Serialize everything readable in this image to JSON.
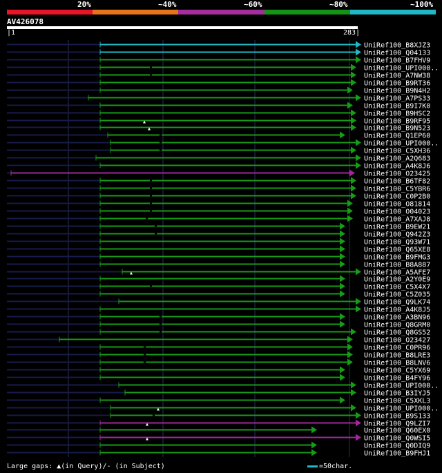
{
  "header": {
    "percentages": [
      "20%",
      "~40%",
      "~60%",
      "~80%",
      "~100%"
    ],
    "color_bar": [
      "#e8152a",
      "#e7731c",
      "#a42f9c",
      "#139416",
      "#1fb8c4"
    ]
  },
  "query": {
    "title": "AV426078",
    "start": "1",
    "end": "283"
  },
  "legend": {
    "text": "Large gaps: ▲(in Query)/- (in Subject)",
    "scale_text": "=50char."
  },
  "colors": {
    "cyan": "#1fb8c4",
    "green": "#169c16",
    "purple": "#a0289a",
    "navy": "#161b4a",
    "grid": "#2a2f5a"
  },
  "hits": [
    {
      "label": "UniRef100_B8XJZ3",
      "color": "cyan",
      "start": 145,
      "end": 515,
      "sublead": 10
    },
    {
      "label": "UniRef100_Q04133",
      "color": "cyan",
      "start": 145,
      "end": 515,
      "sublead": 10
    },
    {
      "label": "UniRef100_B7FHV9",
      "color": "green",
      "start": 145,
      "end": 515,
      "sublead": 10
    },
    {
      "label": "UniRef100_UPI000..",
      "color": "green",
      "start": 145,
      "end": 508,
      "sublead": 10,
      "gap": 218
    },
    {
      "label": "UniRef100_A7NW38",
      "color": "green",
      "start": 145,
      "end": 508,
      "sublead": 10,
      "gap": 218
    },
    {
      "label": "UniRef100_B9RT36",
      "color": "green",
      "start": 145,
      "end": 508,
      "sublead": 10
    },
    {
      "label": "UniRef100_B9N4H2",
      "color": "green",
      "start": 145,
      "end": 503,
      "sublead": 10
    },
    {
      "label": "UniRef100_A7PS33",
      "color": "green",
      "start": 128,
      "end": 515,
      "sublead": 10
    },
    {
      "label": "UniRef100_B9I7K0",
      "color": "green",
      "start": 145,
      "end": 503,
      "sublead": 10
    },
    {
      "label": "UniRef100_B9HSC2",
      "color": "green",
      "start": 145,
      "end": 508,
      "sublead": 10
    },
    {
      "label": "UniRef100_B9RF95",
      "color": "green",
      "start": 145,
      "end": 508,
      "sublead": 10,
      "tri": 209
    },
    {
      "label": "UniRef100_B9N523",
      "color": "green",
      "start": 145,
      "end": 508,
      "sublead": 10,
      "tri": 216
    },
    {
      "label": "UniRef100_Q1EP60",
      "color": "green",
      "start": 156,
      "end": 492,
      "sublead": 10,
      "gap": 232
    },
    {
      "label": "UniRef100_UPI000..",
      "color": "green",
      "start": 160,
      "end": 515,
      "sublead": 10,
      "gap": 232
    },
    {
      "label": "UniRef100_C5XH36",
      "color": "green",
      "start": 160,
      "end": 508,
      "sublead": 10,
      "gap": 232
    },
    {
      "label": "UniRef100_A2Q683",
      "color": "green",
      "start": 139,
      "end": 515,
      "sublead": 10
    },
    {
      "label": "UniRef100_A4K8J6",
      "color": "green",
      "start": 145,
      "end": 515,
      "sublead": 10
    },
    {
      "label": "UniRef100_O23425",
      "color": "purple",
      "start": 16,
      "end": 506,
      "sublead": 10
    },
    {
      "label": "UniRef100_B6TF82",
      "color": "green",
      "start": 145,
      "end": 508,
      "sublead": 10,
      "gap": 218
    },
    {
      "label": "UniRef100_C5YBR6",
      "color": "green",
      "start": 145,
      "end": 508,
      "sublead": 10,
      "gap": 218
    },
    {
      "label": "UniRef100_C0P2B0",
      "color": "green",
      "start": 145,
      "end": 508,
      "sublead": 10,
      "gap": 218
    },
    {
      "label": "UniRef100_O81814",
      "color": "green",
      "start": 145,
      "end": 503,
      "sublead": 10,
      "gap": 218
    },
    {
      "label": "UniRef100_O04023",
      "color": "green",
      "start": 145,
      "end": 503,
      "sublead": 10,
      "gap": 218
    },
    {
      "label": "UniRef100_A7XAJ8",
      "color": "green",
      "start": 145,
      "end": 503,
      "sublead": 10,
      "gap": 212
    },
    {
      "label": "UniRef100_B9EW21",
      "color": "green",
      "start": 145,
      "end": 492,
      "sublead": 10,
      "gap": 225
    },
    {
      "label": "UniRef100_Q942Z3",
      "color": "green",
      "start": 145,
      "end": 492,
      "sublead": 10,
      "gap": 225
    },
    {
      "label": "UniRef100_Q93W71",
      "color": "green",
      "start": 145,
      "end": 492,
      "sublead": 10
    },
    {
      "label": "UniRef100_Q65XE8",
      "color": "green",
      "start": 145,
      "end": 492,
      "sublead": 10
    },
    {
      "label": "UniRef100_B9FMG3",
      "color": "green",
      "start": 145,
      "end": 492,
      "sublead": 10
    },
    {
      "label": "UniRef100_B8A887",
      "color": "green",
      "start": 145,
      "end": 492,
      "sublead": 10
    },
    {
      "label": "UniRef100_A5AFE7",
      "color": "green",
      "start": 177,
      "end": 515,
      "sublead": 10,
      "tri": 190
    },
    {
      "label": "UniRef100_A2Y0E9",
      "color": "green",
      "start": 145,
      "end": 492,
      "sublead": 10
    },
    {
      "label": "UniRef100_C5X4X7",
      "color": "green",
      "start": 145,
      "end": 492,
      "sublead": 10,
      "gap": 218
    },
    {
      "label": "UniRef100_C5Z035",
      "color": "green",
      "start": 145,
      "end": 492,
      "sublead": 10
    },
    {
      "label": "UniRef100_Q9LK74",
      "color": "green",
      "start": 172,
      "end": 515,
      "sublead": 10
    },
    {
      "label": "UniRef100_A4K8J5",
      "color": "green",
      "start": 145,
      "end": 515,
      "sublead": 10
    },
    {
      "label": "UniRef100_A3BN96",
      "color": "green",
      "start": 145,
      "end": 492,
      "sublead": 10,
      "gap": 232
    },
    {
      "label": "UniRef100_Q8GRM0",
      "color": "green",
      "start": 145,
      "end": 492,
      "sublead": 10,
      "gap": 232
    },
    {
      "label": "UniRef100_Q8GS52",
      "color": "green",
      "start": 145,
      "end": 508,
      "sublead": 10,
      "gap": 232
    },
    {
      "label": "UniRef100_O23427",
      "color": "green",
      "start": 86,
      "end": 503,
      "sublead": 10
    },
    {
      "label": "UniRef100_C0PR96",
      "color": "green",
      "start": 145,
      "end": 503,
      "sublead": 10,
      "gap": 209
    },
    {
      "label": "UniRef100_B8LRE3",
      "color": "green",
      "start": 145,
      "end": 503,
      "sublead": 10,
      "gap": 209
    },
    {
      "label": "UniRef100_B8LNV6",
      "color": "green",
      "start": 145,
      "end": 503,
      "sublead": 10,
      "gap": 209
    },
    {
      "label": "UniRef100_C5YX69",
      "color": "green",
      "start": 145,
      "end": 492,
      "sublead": 10
    },
    {
      "label": "UniRef100_B4FY96",
      "color": "green",
      "start": 145,
      "end": 492,
      "sublead": 10
    },
    {
      "label": "UniRef100_UPI000..",
      "color": "green",
      "start": 172,
      "end": 508,
      "sublead": 10
    },
    {
      "label": "UniRef100_B3IYJ5",
      "color": "green",
      "start": 181,
      "end": 508,
      "sublead": 10
    },
    {
      "label": "UniRef100_C5XKL3",
      "color": "green",
      "start": 145,
      "end": 492,
      "sublead": 10
    },
    {
      "label": "UniRef100_UPI000..",
      "color": "green",
      "start": 160,
      "end": 508,
      "sublead": 10,
      "tri": 229
    },
    {
      "label": "UniRef100_B9S133",
      "color": "green",
      "start": 160,
      "end": 515,
      "sublead": 10,
      "gap": 222
    },
    {
      "label": "UniRef100_Q9LZI7",
      "color": "purple",
      "start": 145,
      "end": 515,
      "sublead": 10,
      "tri": 213
    },
    {
      "label": "UniRef100_Q60EX0",
      "color": "green",
      "start": 145,
      "end": 451,
      "sublead": 10
    },
    {
      "label": "UniRef100_Q0WSI5",
      "color": "purple",
      "start": 145,
      "end": 515,
      "sublead": 10,
      "tri": 213
    },
    {
      "label": "UniRef100_Q0DIQ9",
      "color": "green",
      "start": 145,
      "end": 451,
      "sublead": 10
    },
    {
      "label": "UniRef100_B9FHJ1",
      "color": "green",
      "start": 145,
      "end": 451,
      "sublead": 10
    }
  ]
}
